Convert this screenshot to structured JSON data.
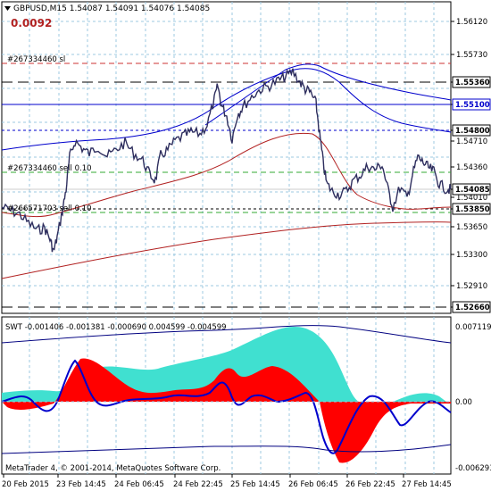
{
  "window": {
    "symbol_line": "GBPUSD,M15  1.54087 1.54091 1.54076 1.54085",
    "spread_value": "0.0092",
    "copyright": "MetaTrader 4, © 2001-2014, MetaQuotes Software Corp."
  },
  "price_axis": {
    "labels": [
      "1.56120",
      "1.55730",
      "1.55360",
      "1.55100",
      "1.54800",
      "1.54710",
      "1.54360",
      "1.54085",
      "1.54010",
      "1.53850",
      "1.53650",
      "1.53300",
      "1.52910",
      "1.52660"
    ],
    "price_tags": [
      {
        "label": "1.55360",
        "color": "#000000"
      },
      {
        "label": "1.55100",
        "color": "#0000CC"
      },
      {
        "label": "1.54800",
        "color": "#000000"
      },
      {
        "label": "1.54085",
        "color": "#000000"
      },
      {
        "label": "1.53850",
        "color": "#000000"
      },
      {
        "label": "1.52660",
        "color": "#000000"
      }
    ]
  },
  "trade_labels": [
    {
      "text": "#267334460 sl",
      "color": "#000000"
    },
    {
      "text": "#267334460 sell 0.10",
      "color": "#000000"
    },
    {
      "text": "#266571703 sell 0.10",
      "color": "#000000"
    }
  ],
  "indicator": {
    "title": "SWT -0.001406 -0.001381 -0.000690 0.004599 -0.004599",
    "axis_labels": [
      "0.007119",
      "0.00",
      "-0.006293"
    ],
    "colors": {
      "teal": "#40E0D0",
      "red": "#FF0000",
      "blue": "#0000CC",
      "navy": "#000080"
    }
  },
  "time_axis": {
    "labels": [
      "20 Feb 2015",
      "23 Feb 14:45",
      "24 Feb 06:45",
      "24 Feb 22:45",
      "25 Feb 14:45",
      "26 Feb 06:45",
      "26 Feb 22:45",
      "27 Feb 14:45"
    ]
  },
  "colors": {
    "price_line": "#2E2E5E",
    "ma_red": "#B22222",
    "ma_blue": "#0000CC",
    "grid": "#9CC8E0",
    "level_green": "#33AA33",
    "level_red": "#CC3333"
  }
}
